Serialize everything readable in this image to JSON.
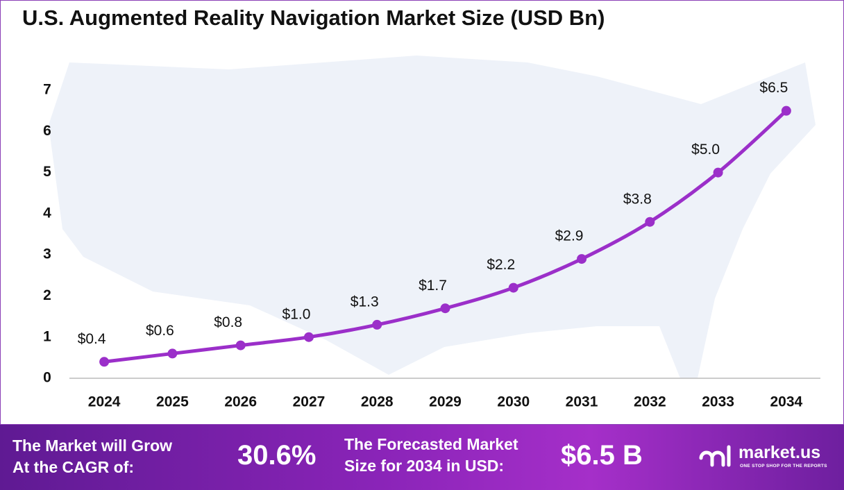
{
  "chart_data": {
    "type": "line",
    "title": "U.S. Augmented Reality Navigation Market Size (USD Bn)",
    "categories": [
      "2024",
      "2025",
      "2026",
      "2027",
      "2028",
      "2029",
      "2030",
      "2031",
      "2032",
      "2033",
      "2034"
    ],
    "values": [
      0.4,
      0.6,
      0.8,
      1.0,
      1.3,
      1.7,
      2.2,
      2.9,
      3.8,
      5.0,
      6.5
    ],
    "value_labels": [
      "$0.4",
      "$0.6",
      "$0.8",
      "$1.0",
      "$1.3",
      "$1.7",
      "$2.2",
      "$2.9",
      "$3.8",
      "$5.0",
      "$6.5"
    ],
    "color": "#9b2fc9",
    "ylim": [
      0,
      7
    ],
    "yticks": [
      0,
      1,
      2,
      3,
      4,
      5,
      6,
      7
    ],
    "grid": false
  },
  "footer": {
    "cagr_text": [
      "The Market will Grow",
      "At the CAGR of:"
    ],
    "cagr_value": "30.6%",
    "forecast_text": [
      "The Forecasted Market",
      "Size for 2034 in USD:"
    ],
    "forecast_value": "$6.5 B",
    "logo": "market.us",
    "tagline": "ONE STOP SHOP FOR THE REPORTS"
  }
}
